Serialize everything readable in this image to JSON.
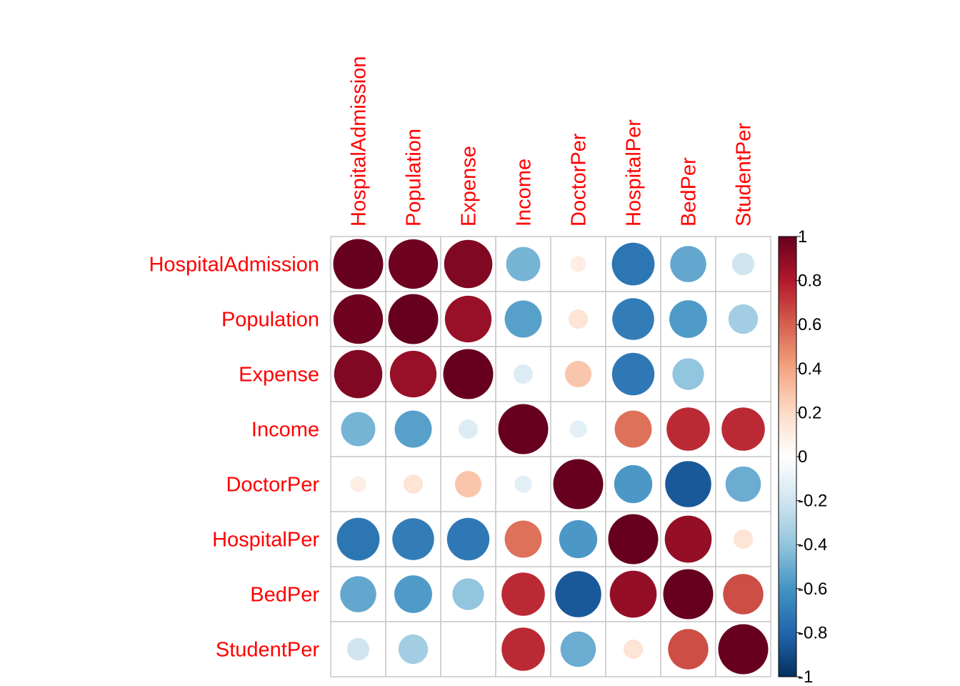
{
  "chart_data": {
    "type": "heatmap",
    "style": "corrplot-circle",
    "title": "",
    "label_color": "#ff0000",
    "variables": [
      "HospitalAdmission",
      "Population",
      "Expense",
      "Income",
      "DoctorPer",
      "HospitalPer",
      "BedPer",
      "StudentPer"
    ],
    "matrix": [
      [
        1.0,
        0.98,
        0.93,
        -0.47,
        0.1,
        -0.73,
        -0.52,
        -0.2
      ],
      [
        0.98,
        1.0,
        0.87,
        -0.55,
        0.15,
        -0.7,
        -0.57,
        -0.35
      ],
      [
        0.93,
        0.87,
        1.0,
        -0.15,
        0.28,
        -0.72,
        -0.4,
        0.0
      ],
      [
        -0.47,
        -0.55,
        -0.15,
        1.0,
        -0.12,
        0.55,
        0.75,
        0.75
      ],
      [
        0.1,
        0.15,
        0.28,
        -0.12,
        1.0,
        -0.58,
        -0.85,
        -0.5
      ],
      [
        -0.73,
        -0.7,
        -0.72,
        0.55,
        -0.58,
        1.0,
        0.88,
        0.15
      ],
      [
        -0.52,
        -0.57,
        -0.4,
        0.75,
        -0.85,
        0.88,
        1.0,
        0.65
      ],
      [
        -0.2,
        -0.35,
        0.0,
        0.75,
        -0.5,
        0.15,
        0.65,
        1.0
      ]
    ],
    "colorbar": {
      "range": [
        -1,
        1
      ],
      "ticks": [
        "1",
        "0.8",
        "0.6",
        "0.4",
        "0.2",
        "0",
        "-0.2",
        "-0.4",
        "-0.6",
        "-0.8",
        "-1"
      ],
      "colors": [
        "#67001f",
        "#b2182b",
        "#d6604d",
        "#f4a582",
        "#fddbc7",
        "#ffffff",
        "#d1e5f0",
        "#92c5de",
        "#4393c3",
        "#2166ac",
        "#053061"
      ]
    }
  }
}
